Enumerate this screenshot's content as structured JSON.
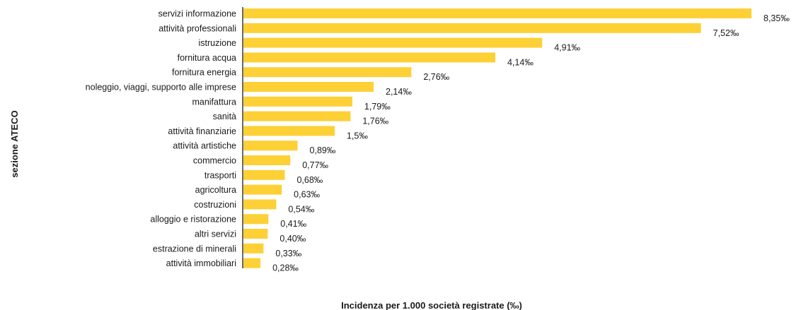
{
  "chart_data": {
    "type": "bar",
    "orientation": "horizontal",
    "xlabel": "Incidenza per 1.000 società registrate (‰)",
    "ylabel": "sezione ATECO",
    "xlim": [
      0,
      8.35
    ],
    "grid": false,
    "legend": "none",
    "bar_color": "#FDD036",
    "categories": [
      "servizi informazione",
      "attività professionali",
      "istruzione",
      "fornitura acqua",
      "fornitura energia",
      "noleggio, viaggi, supporto alle imprese",
      "manifattura",
      "sanità",
      "attività finanziarie",
      "attività artistiche",
      "commercio",
      "trasporti",
      "agricoltura",
      "costruzioni",
      "alloggio e ristorazione",
      "altri servizi",
      "estrazione di minerali",
      "attività immobiliari"
    ],
    "values": [
      8.35,
      7.52,
      4.91,
      4.14,
      2.76,
      2.14,
      1.79,
      1.76,
      1.5,
      0.89,
      0.77,
      0.68,
      0.63,
      0.54,
      0.41,
      0.4,
      0.33,
      0.28
    ],
    "value_labels": [
      "8,35‰",
      "7,52‰",
      "4,91‰",
      "4,14‰",
      "2,76‰",
      "2,14‰",
      "1,79‰",
      "1,76‰",
      "1,5‰",
      "0,89‰",
      "0,77‰",
      "0,68‰",
      "0,63‰",
      "0,54‰",
      "0,41‰",
      "0,40‰",
      "0,33‰",
      "0,28‰"
    ]
  }
}
